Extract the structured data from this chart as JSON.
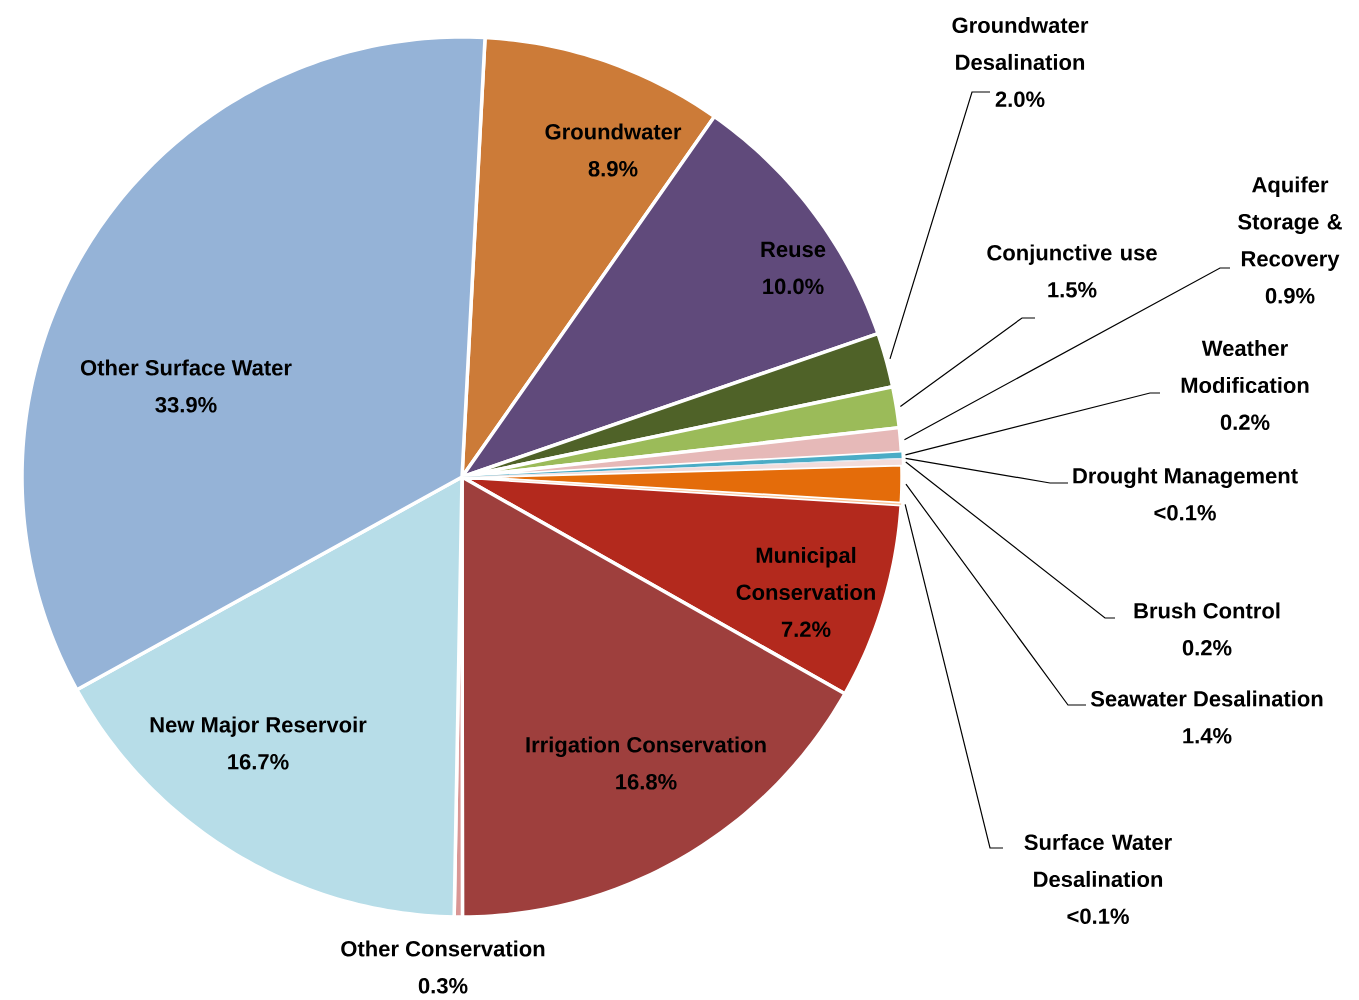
{
  "chart_data": {
    "type": "pie",
    "categories": [
      "Groundwater",
      "Reuse",
      "Groundwater Desalination",
      "Conjunctive use",
      "Aquifer Storage & Recovery",
      "Weather Modification",
      "Drought Management",
      "Brush Control",
      "Seawater Desalination",
      "Surface Water Desalination",
      "Municipal Conservation",
      "Irrigation Conservation",
      "Other Conservation",
      "New Major Reservoir",
      "Other Surface Water"
    ],
    "values": [
      8.9,
      10.0,
      2.0,
      1.5,
      0.9,
      0.2,
      0.05,
      0.2,
      1.4,
      0.05,
      7.2,
      16.8,
      0.3,
      16.7,
      33.9
    ],
    "value_labels": [
      "8.9%",
      "10.0%",
      "2.0%",
      "1.5%",
      "0.9%",
      "0.2%",
      "<0.1%",
      "0.2%",
      "1.4%",
      "<0.1%",
      "7.2%",
      "16.8%",
      "0.3%",
      "16.7%",
      "33.9%"
    ],
    "colors": [
      "#cc7b38",
      "#604a7b",
      "#4f6228",
      "#9bbb59",
      "#e6b9b8",
      "#4bacc6",
      "#dbe5f1",
      "#f2dcdb",
      "#e46c0a",
      "#fac090",
      "#b3291d",
      "#9e3f3d",
      "#d99694",
      "#b7dde8",
      "#95b3d7"
    ]
  }
}
